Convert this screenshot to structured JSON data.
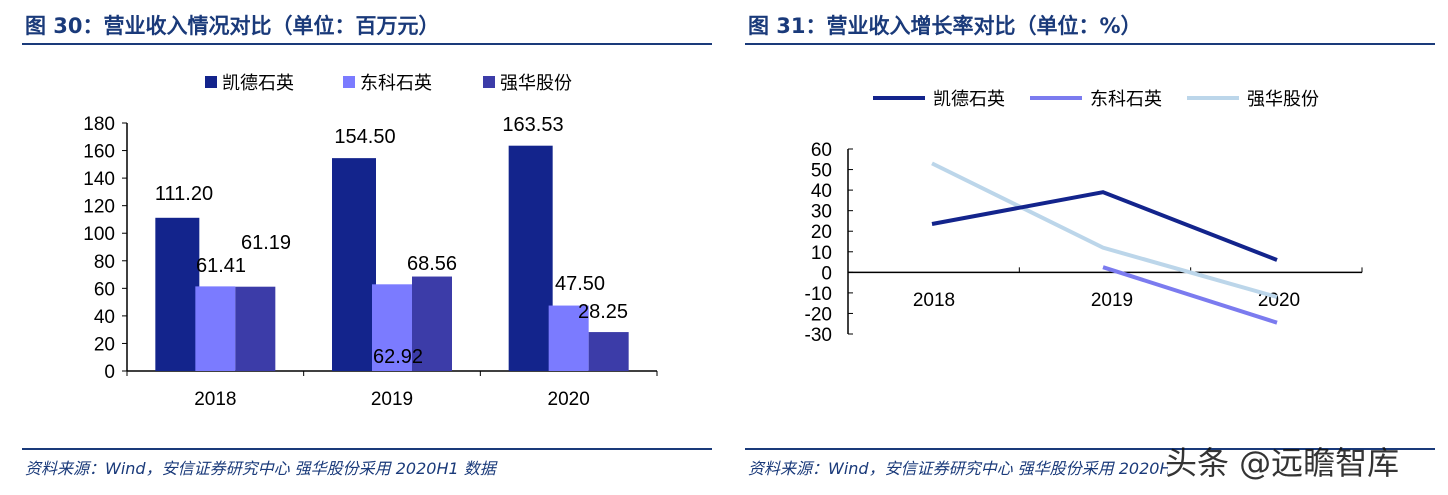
{
  "left": {
    "title": "图 30：营业收入情况对比（单位：百万元）",
    "source": "资料来源：Wind，安信证券研究中心  强华股份采用 2020H1 数据"
  },
  "right": {
    "title": "图 31：营业收入增长率对比（单位：%）",
    "source": "资料来源：Wind，安信证券研究中心  强华股份采用 2020H1 数据"
  },
  "watermark": "头条 @远瞻智库",
  "chart_data": [
    {
      "type": "bar",
      "title": "营业收入情况对比（单位：百万元）",
      "categories": [
        "2018",
        "2019",
        "2020"
      ],
      "series": [
        {
          "name": "凯德石英",
          "color": "#13248c",
          "values": [
            111.2,
            154.5,
            163.53
          ]
        },
        {
          "name": "东科石英",
          "color": "#7b7bff",
          "values": [
            61.41,
            62.92,
            47.5
          ]
        },
        {
          "name": "强华股份",
          "color": "#3c3ca8",
          "values": [
            61.19,
            68.56,
            28.25
          ]
        }
      ],
      "data_labels": [
        [
          "111.20",
          "61.41",
          "61.19"
        ],
        [
          "154.50",
          "62.92",
          "68.56"
        ],
        [
          "163.53",
          "47.50",
          "28.25"
        ]
      ],
      "ylim": [
        0,
        180
      ],
      "yticks": [
        "0",
        "20",
        "40",
        "60",
        "80",
        "100",
        "120",
        "140",
        "160",
        "180"
      ],
      "legend": "top"
    },
    {
      "type": "line",
      "title": "营业收入增长率对比（单位：%）",
      "categories": [
        "2018",
        "2019",
        "2020"
      ],
      "series": [
        {
          "name": "凯德石英",
          "color": "#13248c",
          "values": [
            23.5,
            39,
            6
          ]
        },
        {
          "name": "东科石英",
          "color": "#7b7bef",
          "values": [
            null,
            2.5,
            -24.5
          ]
        },
        {
          "name": "强华股份",
          "color": "#bcd6ea",
          "values": [
            53,
            12,
            -12
          ]
        }
      ],
      "ylim": [
        -30,
        60
      ],
      "yticks": [
        "60",
        "50",
        "40",
        "30",
        "20",
        "10",
        "0",
        "-10",
        "-20",
        "-30"
      ],
      "legend": "top"
    }
  ]
}
